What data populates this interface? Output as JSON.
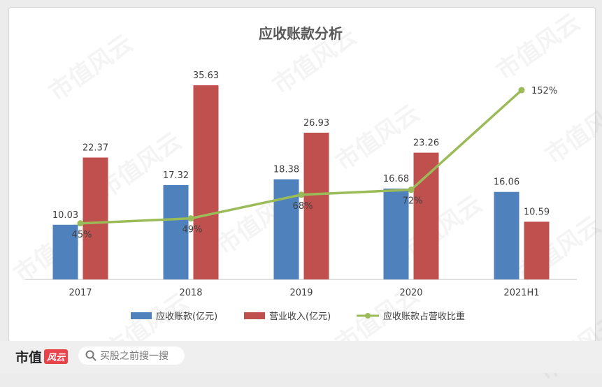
{
  "chart_data": {
    "type": "bar",
    "title": "应收账款分析",
    "categories": [
      "2017",
      "2018",
      "2019",
      "2020",
      "2021H1"
    ],
    "series": [
      {
        "name": "应收账款(亿元)",
        "type": "bar",
        "color": "#4f81bd",
        "values": [
          10.03,
          17.32,
          18.38,
          16.68,
          16.06
        ],
        "labels": [
          "10.03",
          "17.32",
          "18.38",
          "16.68",
          "16.06"
        ]
      },
      {
        "name": "营业收入(亿元)",
        "type": "bar",
        "color": "#c0504d",
        "values": [
          22.37,
          35.63,
          26.93,
          23.26,
          10.59
        ],
        "labels": [
          "22.37",
          "35.63",
          "26.93",
          "23.26",
          "10.59"
        ]
      },
      {
        "name": "应收账款占营收比重",
        "type": "line",
        "color": "#9bbb59",
        "values": [
          45,
          49,
          68,
          72,
          152
        ],
        "labels": [
          "45%",
          "49%",
          "68%",
          "72%",
          "152%"
        ]
      }
    ],
    "bar_ylim": [
      0,
      40
    ],
    "line_ylim": [
      0,
      175
    ],
    "legend_position": "bottom",
    "grid": false
  },
  "footer": {
    "brand": "市值",
    "brand_badge": "风云",
    "search_placeholder": "买股之前搜一搜"
  },
  "watermark_text": "市值风云",
  "colors": {
    "background": "#ececec",
    "card": "#ffffff",
    "axis": "#bfbfbf"
  }
}
